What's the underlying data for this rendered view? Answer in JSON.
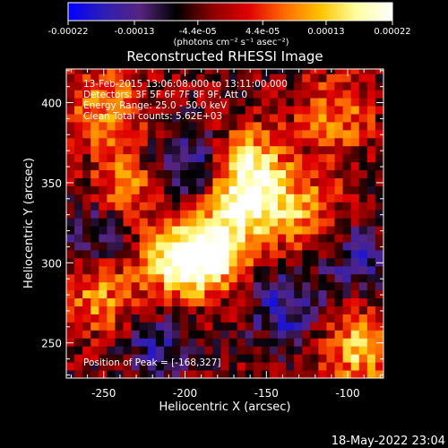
{
  "chart_data": {
    "type": "heatmap",
    "title": "Reconstructed RHESSI Image",
    "xlabel": "Heliocentric X (arcsec)",
    "ylabel": "Heliocentric Y (arcsec)",
    "xlim": [
      -273,
      -78
    ],
    "ylim": [
      228,
      421
    ],
    "x_ticks": [
      -250,
      -200,
      -150,
      -100
    ],
    "x_tick_labels": [
      "-250",
      "-200",
      "-150",
      "-100"
    ],
    "y_ticks": [
      250,
      300,
      350,
      400
    ],
    "y_tick_labels": [
      "250",
      "300",
      "350",
      "400"
    ],
    "grid": false,
    "colorbar": {
      "position": "top",
      "colormap": "blue-purple-red-yellow-white",
      "stops": [
        "#0000ff",
        "#2e1eb5",
        "#56247e",
        "#000000",
        "#8c0000",
        "#e00000",
        "#ff6a00",
        "#ffc300",
        "#ffff9e",
        "#ffffff"
      ],
      "range": [
        -0.00022,
        0.00022
      ],
      "tick_labels": [
        "-0.00022",
        "-0.00013",
        "-4.4e-05",
        "4.4e-05",
        "0.00013",
        "0.00022"
      ],
      "tick_values": [
        -0.00022,
        -0.00013,
        -4.4e-05,
        4.4e-05,
        0.00013,
        0.00022
      ],
      "unit_label": "(photons cm⁻² s⁻¹ asec⁻²)"
    },
    "annotations": {
      "time_range": "13-Feb-2015 13:06:08.000 to 13:11:00.000",
      "detectors": "Detectors: 3F 5F 6F 7F 8F 9F, Att 0",
      "energy_range": "Energy Range: 25.0 - 50.0 keV",
      "method": "Clean     Total counts: 5.62E+03",
      "peak": "Position of Peak = [-168,327]"
    },
    "peak_position": [
      -168,
      327
    ],
    "bright_regions": [
      {
        "x": -205,
        "y": 298,
        "level": 1.0
      },
      {
        "x": -185,
        "y": 305,
        "level": 0.9
      },
      {
        "x": -165,
        "y": 335,
        "level": 0.95
      },
      {
        "x": -162,
        "y": 360,
        "level": 0.75
      },
      {
        "x": -240,
        "y": 345,
        "level": 0.55
      },
      {
        "x": -250,
        "y": 395,
        "level": 0.6
      },
      {
        "x": -110,
        "y": 390,
        "level": 0.5
      },
      {
        "x": -95,
        "y": 245,
        "level": 0.8
      },
      {
        "x": -255,
        "y": 275,
        "level": 0.55
      },
      {
        "x": -130,
        "y": 330,
        "level": 0.55
      }
    ],
    "dark_regions": [
      {
        "x": -200,
        "y": 360,
        "level": -0.6
      },
      {
        "x": -140,
        "y": 270,
        "level": -0.6
      },
      {
        "x": -220,
        "y": 245,
        "level": -0.45
      },
      {
        "x": -95,
        "y": 300,
        "level": -0.45
      },
      {
        "x": -260,
        "y": 320,
        "level": -0.4
      }
    ]
  },
  "footer": {
    "timestamp": "18-May-2022 23:04"
  }
}
